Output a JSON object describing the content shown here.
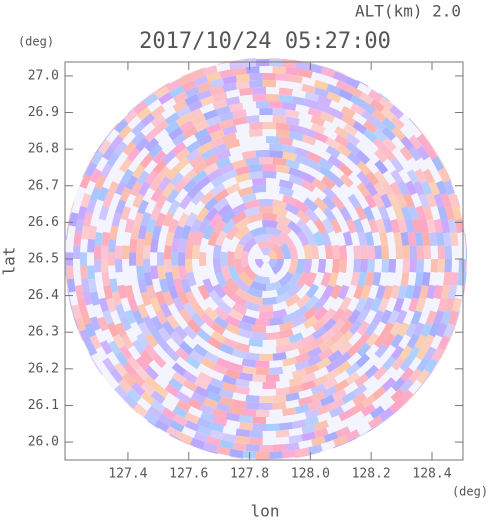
{
  "chart_data": {
    "type": "radar",
    "title": "2017/10/24 05:27:00",
    "subtitle": "ALT(km) 2.0",
    "x_label": "lon",
    "y_label": "lat",
    "x_unit": "(deg)",
    "y_unit": "(deg)",
    "xlim": [
      127.193,
      128.502
    ],
    "ylim": [
      25.951,
      27.038
    ],
    "xticks": [
      127.4,
      127.6,
      127.8,
      {
        "value": 128.0,
        "label": "128.0"
      },
      128.2,
      128.4
    ],
    "yticks": [
      {
        "value": 26.0,
        "label": "26.0"
      },
      26.1,
      26.2,
      26.3,
      26.4,
      26.5,
      26.6,
      26.7,
      26.8,
      26.9,
      {
        "value": 27.0,
        "label": "27.0"
      }
    ]
  }
}
